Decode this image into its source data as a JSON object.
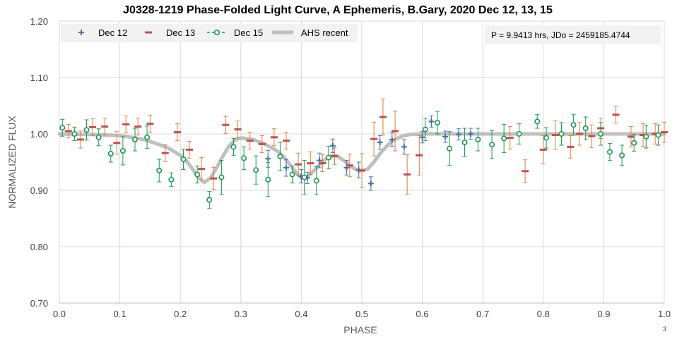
{
  "chart_data": {
    "type": "scatter",
    "title": "J0328-1219 Phase-Folded Light Curve, A Ephemeris, B.Gary, 2020 Dec 12, 13, 15",
    "xlabel": "PHASE",
    "ylabel": "NORMALIZED FLUX",
    "xlim": [
      0.0,
      1.0
    ],
    "ylim": [
      0.7,
      1.2
    ],
    "x_ticks": [
      "0.0",
      "0.1",
      "0.2",
      "0.3",
      "0.4",
      "0.5",
      "0.6",
      "0.7",
      "0.8",
      "0.9",
      "1.0"
    ],
    "y_ticks": [
      "0.70",
      "0.80",
      "0.90",
      "1.00",
      "1.10",
      "1.20"
    ],
    "grid": true,
    "legend_position": "top-left",
    "annotation": "P = 9.9413 hrs, JDo = 2459185.4744",
    "corner_mark": "3",
    "series": [
      {
        "name": "Dec 12",
        "marker": "plus",
        "color": "#4472a8",
        "errbar_color": "#4472a8",
        "points": [
          [
            0.345,
            0.956,
            0.015
          ],
          [
            0.375,
            0.94,
            0.015
          ],
          [
            0.4,
            0.925,
            0.012
          ],
          [
            0.41,
            0.922,
            0.01
          ],
          [
            0.43,
            0.953,
            0.013
          ],
          [
            0.452,
            0.979,
            0.012
          ],
          [
            0.475,
            0.94,
            0.013
          ],
          [
            0.495,
            0.936,
            0.014
          ],
          [
            0.515,
            0.912,
            0.012
          ],
          [
            0.53,
            0.985,
            0.012
          ],
          [
            0.55,
            0.99,
            0.012
          ],
          [
            0.57,
            0.977,
            0.013
          ],
          [
            0.6,
            0.994,
            0.01
          ],
          [
            0.615,
            1.022,
            0.01
          ],
          [
            0.638,
            0.995,
            0.01
          ],
          [
            0.66,
            0.999,
            0.01
          ],
          [
            0.68,
            1.0,
            0.01
          ]
        ]
      },
      {
        "name": "Dec 13",
        "marker": "dash",
        "color": "#c0504d",
        "errbar_color": "#e0803a",
        "points": [
          [
            0.015,
            1.005,
            0.012
          ],
          [
            0.035,
            0.99,
            0.015
          ],
          [
            0.055,
            1.012,
            0.015
          ],
          [
            0.075,
            1.013,
            0.015
          ],
          [
            0.095,
            0.984,
            0.02
          ],
          [
            0.11,
            1.017,
            0.015
          ],
          [
            0.13,
            1.013,
            0.015
          ],
          [
            0.15,
            1.018,
            0.015
          ],
          [
            0.175,
            0.966,
            0.015
          ],
          [
            0.195,
            1.003,
            0.015
          ],
          [
            0.215,
            0.972,
            0.015
          ],
          [
            0.235,
            0.938,
            0.02
          ],
          [
            0.255,
            0.921,
            0.02
          ],
          [
            0.275,
            1.016,
            0.015
          ],
          [
            0.295,
            1.008,
            0.015
          ],
          [
            0.315,
            0.988,
            0.015
          ],
          [
            0.335,
            0.982,
            0.015
          ],
          [
            0.355,
            0.994,
            0.015
          ],
          [
            0.375,
            0.988,
            0.015
          ],
          [
            0.395,
            0.946,
            0.02
          ],
          [
            0.415,
            0.948,
            0.02
          ],
          [
            0.435,
            0.948,
            0.015
          ],
          [
            0.455,
            0.961,
            0.015
          ],
          [
            0.48,
            0.944,
            0.02
          ],
          [
            0.5,
            0.935,
            0.03
          ],
          [
            0.52,
            0.991,
            0.03
          ],
          [
            0.535,
            1.03,
            0.032
          ],
          [
            0.555,
            1.005,
            0.035
          ],
          [
            0.575,
            0.928,
            0.035
          ],
          [
            0.595,
            0.962,
            0.035
          ],
          [
            0.745,
            0.993,
            0.02
          ],
          [
            0.77,
            0.934,
            0.02
          ],
          [
            0.8,
            0.972,
            0.025
          ],
          [
            0.82,
            0.998,
            0.025
          ],
          [
            0.845,
            0.977,
            0.02
          ],
          [
            0.86,
            1.0,
            0.02
          ],
          [
            0.88,
            0.996,
            0.02
          ],
          [
            0.895,
            1.01,
            0.018
          ],
          [
            0.92,
            1.034,
            0.015
          ],
          [
            0.945,
            0.995,
            0.018
          ],
          [
            0.965,
            0.998,
            0.02
          ],
          [
            0.985,
            1.0,
            0.018
          ],
          [
            1.0,
            1.003,
            0.018
          ]
        ]
      },
      {
        "name": "Dec 15",
        "marker": "circle",
        "color": "#1a9850",
        "errbar_color": "#1a9850",
        "points": [
          [
            0.005,
            1.011,
            0.015
          ],
          [
            0.025,
            1.0,
            0.012
          ],
          [
            0.045,
            1.007,
            0.018
          ],
          [
            0.065,
            0.994,
            0.015
          ],
          [
            0.085,
            0.965,
            0.015
          ],
          [
            0.105,
            0.97,
            0.025
          ],
          [
            0.125,
            0.99,
            0.02
          ],
          [
            0.145,
            0.994,
            0.02
          ],
          [
            0.165,
            0.935,
            0.02
          ],
          [
            0.185,
            0.919,
            0.012
          ],
          [
            0.205,
            0.955,
            0.018
          ],
          [
            0.228,
            0.928,
            0.015
          ],
          [
            0.248,
            0.883,
            0.015
          ],
          [
            0.268,
            0.923,
            0.03
          ],
          [
            0.288,
            0.977,
            0.015
          ],
          [
            0.305,
            0.957,
            0.02
          ],
          [
            0.325,
            0.936,
            0.025
          ],
          [
            0.345,
            0.919,
            0.03
          ],
          [
            0.365,
            0.96,
            0.025
          ],
          [
            0.385,
            0.928,
            0.015
          ],
          [
            0.405,
            0.923,
            0.03
          ],
          [
            0.425,
            0.917,
            0.025
          ],
          [
            0.445,
            0.958,
            0.02
          ],
          [
            0.605,
            1.008,
            0.02
          ],
          [
            0.625,
            1.02,
            0.02
          ],
          [
            0.645,
            0.974,
            0.03
          ],
          [
            0.67,
            0.985,
            0.025
          ],
          [
            0.692,
            0.99,
            0.02
          ],
          [
            0.715,
            0.981,
            0.025
          ],
          [
            0.735,
            0.992,
            0.025
          ],
          [
            0.76,
            1.0,
            0.018
          ],
          [
            0.79,
            1.022,
            0.012
          ],
          [
            0.805,
            0.993,
            0.018
          ],
          [
            0.83,
            1.0,
            0.02
          ],
          [
            0.85,
            1.016,
            0.018
          ],
          [
            0.87,
            1.01,
            0.02
          ],
          [
            0.895,
            1.0,
            0.02
          ],
          [
            0.91,
            0.968,
            0.015
          ],
          [
            0.93,
            0.962,
            0.018
          ],
          [
            0.95,
            0.984,
            0.015
          ],
          [
            0.97,
            0.995,
            0.02
          ],
          [
            0.99,
            0.998,
            0.018
          ]
        ]
      },
      {
        "name": "AHS recent",
        "type": "line",
        "color": "#bfbfbf",
        "x": [
          0.0,
          0.05,
          0.08,
          0.1,
          0.12,
          0.14,
          0.16,
          0.18,
          0.2,
          0.21,
          0.22,
          0.23,
          0.24,
          0.25,
          0.26,
          0.27,
          0.28,
          0.29,
          0.3,
          0.32,
          0.34,
          0.36,
          0.37,
          0.38,
          0.39,
          0.4,
          0.41,
          0.42,
          0.43,
          0.44,
          0.45,
          0.46,
          0.47,
          0.48,
          0.49,
          0.5,
          0.51,
          0.52,
          0.53,
          0.54,
          0.55,
          0.56,
          0.57,
          0.58,
          0.6,
          0.65,
          0.7,
          1.0
        ],
        "y": [
          1.0,
          0.999,
          0.998,
          0.997,
          0.994,
          0.99,
          0.983,
          0.975,
          0.962,
          0.952,
          0.938,
          0.922,
          0.914,
          0.922,
          0.94,
          0.96,
          0.978,
          0.989,
          0.993,
          0.99,
          0.982,
          0.97,
          0.96,
          0.947,
          0.933,
          0.922,
          0.924,
          0.934,
          0.945,
          0.955,
          0.961,
          0.96,
          0.953,
          0.944,
          0.937,
          0.935,
          0.938,
          0.95,
          0.965,
          0.977,
          0.987,
          0.993,
          0.997,
          0.999,
          1.0,
          1.0,
          1.0,
          1.0
        ]
      }
    ]
  }
}
